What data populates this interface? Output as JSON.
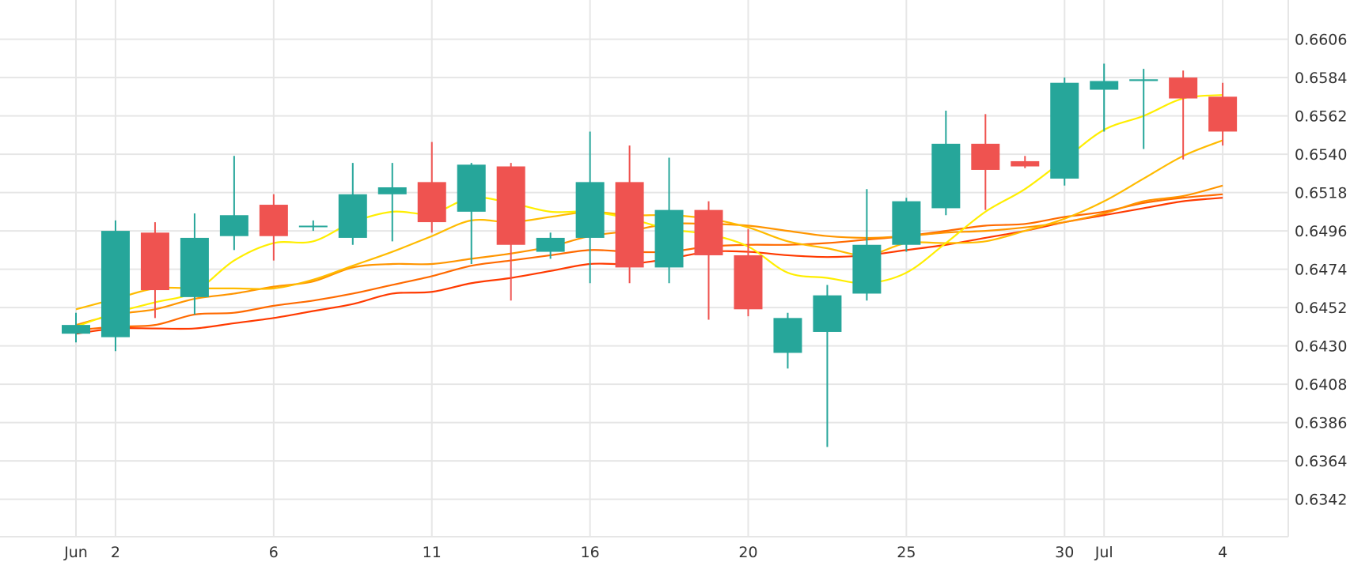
{
  "chart_data": {
    "type": "candlestick",
    "title": "",
    "xlabel": "",
    "ylabel": "",
    "ylim": [
      0.6321,
      0.66285
    ],
    "grid": true,
    "legend": "none",
    "colors": {
      "up": "#26a69a",
      "down": "#ef5350",
      "grid": "#e6e6e6",
      "text": "#333333"
    },
    "dates": [
      "Jun 1",
      "Jun 2",
      "Jun 3",
      "Jun 4",
      "Jun 5",
      "Jun 6",
      "Jun 8",
      "Jun 9",
      "Jun 10",
      "Jun 11",
      "Jun 12",
      "Jun 13",
      "Jun 15",
      "Jun 16",
      "Jun 17",
      "Jun 18",
      "Jun 19",
      "Jun 20",
      "Jun 22",
      "Jun 23",
      "Jun 24",
      "Jun 25",
      "Jun 26",
      "Jun 27",
      "Jun 29",
      "Jun 30",
      "Jul 1",
      "Jul 2",
      "Jul 3",
      "Jul 4"
    ],
    "ohlc": [
      [
        0.6437,
        0.6449,
        0.6432,
        0.6442
      ],
      [
        0.6435,
        0.6502,
        0.6427,
        0.6496
      ],
      [
        0.6495,
        0.6501,
        0.6446,
        0.6462
      ],
      [
        0.6458,
        0.6506,
        0.6448,
        0.6492
      ],
      [
        0.6493,
        0.6539,
        0.6485,
        0.6505
      ],
      [
        0.6511,
        0.6517,
        0.6479,
        0.6493
      ],
      [
        0.6499,
        0.6502,
        0.6496,
        0.6499
      ],
      [
        0.6492,
        0.6535,
        0.6488,
        0.6517
      ],
      [
        0.6517,
        0.6535,
        0.649,
        0.6521
      ],
      [
        0.6524,
        0.6547,
        0.6495,
        0.6501
      ],
      [
        0.6507,
        0.6535,
        0.6477,
        0.6534
      ],
      [
        0.6533,
        0.6535,
        0.6456,
        0.6488
      ],
      [
        0.6484,
        0.6495,
        0.648,
        0.6492
      ],
      [
        0.6492,
        0.6553,
        0.6466,
        0.6524
      ],
      [
        0.6524,
        0.6545,
        0.6466,
        0.6475
      ],
      [
        0.6475,
        0.6538,
        0.6466,
        0.6508
      ],
      [
        0.6508,
        0.6513,
        0.6445,
        0.6482
      ],
      [
        0.6482,
        0.6497,
        0.6447,
        0.6451
      ],
      [
        0.6426,
        0.6449,
        0.6417,
        0.6446
      ],
      [
        0.6438,
        0.6465,
        0.6372,
        0.6459
      ],
      [
        0.646,
        0.652,
        0.6456,
        0.6488
      ],
      [
        0.6488,
        0.6515,
        0.6484,
        0.6513
      ],
      [
        0.6509,
        0.6565,
        0.6505,
        0.6546
      ],
      [
        0.6546,
        0.6563,
        0.6508,
        0.6531
      ],
      [
        0.6536,
        0.6539,
        0.6532,
        0.6533
      ],
      [
        0.6526,
        0.6584,
        0.6522,
        0.6581
      ],
      [
        0.6577,
        0.6592,
        0.6553,
        0.6582
      ],
      [
        0.6582,
        0.6589,
        0.6543,
        0.6583
      ],
      [
        0.6584,
        0.6588,
        0.6537,
        0.6572
      ],
      [
        0.6573,
        0.6581,
        0.6545,
        0.6553
      ]
    ],
    "moving_averages": [
      {
        "name": "ma-1",
        "color": "#ffee00",
        "values": [
          0.6441,
          0.6449,
          0.6455,
          0.6461,
          0.6479,
          0.6489,
          0.649,
          0.6501,
          0.6507,
          0.6506,
          0.6515,
          0.6512,
          0.6507,
          0.6507,
          0.6503,
          0.6497,
          0.6494,
          0.6487,
          0.6472,
          0.6469,
          0.6466,
          0.6472,
          0.6489,
          0.6507,
          0.652,
          0.6537,
          0.6554,
          0.6562,
          0.6572,
          0.6574
        ]
      },
      {
        "name": "ma-2",
        "color": "#ffbb00",
        "values": [
          0.6451,
          0.6457,
          0.6463,
          0.6463,
          0.6463,
          0.6463,
          0.6468,
          0.6476,
          0.6484,
          0.6493,
          0.6502,
          0.6501,
          0.6504,
          0.6507,
          0.6505,
          0.6505,
          0.6503,
          0.6498,
          0.649,
          0.6486,
          0.6482,
          0.6489,
          0.6489,
          0.649,
          0.6496,
          0.6503,
          0.6513,
          0.6526,
          0.6539,
          0.6548
        ]
      },
      {
        "name": "ma-3",
        "color": "#ff9500",
        "values": [
          0.6442,
          0.6448,
          0.6451,
          0.6457,
          0.646,
          0.6464,
          0.6467,
          0.6475,
          0.6477,
          0.6477,
          0.648,
          0.6483,
          0.6487,
          0.6493,
          0.6496,
          0.65,
          0.65,
          0.6499,
          0.6496,
          0.6493,
          0.6492,
          0.6493,
          0.6495,
          0.6496,
          0.6498,
          0.6501,
          0.6506,
          0.6513,
          0.6516,
          0.6522
        ]
      },
      {
        "name": "ma-4",
        "color": "#ff6a00",
        "values": [
          0.6439,
          0.6441,
          0.6442,
          0.6448,
          0.6449,
          0.6453,
          0.6456,
          0.646,
          0.6465,
          0.647,
          0.6476,
          0.6479,
          0.6482,
          0.6485,
          0.6484,
          0.6484,
          0.6487,
          0.6488,
          0.6488,
          0.6489,
          0.6491,
          0.6493,
          0.6496,
          0.6499,
          0.65,
          0.6504,
          0.6507,
          0.6512,
          0.6515,
          0.6517
        ]
      },
      {
        "name": "ma-5",
        "color": "#ff3a00",
        "values": [
          0.6437,
          0.644,
          0.644,
          0.644,
          0.6443,
          0.6446,
          0.645,
          0.6454,
          0.646,
          0.6461,
          0.6466,
          0.6469,
          0.6473,
          0.6477,
          0.6477,
          0.648,
          0.6484,
          0.6484,
          0.6482,
          0.6481,
          0.6482,
          0.6485,
          0.6488,
          0.6492,
          0.6496,
          0.6501,
          0.6505,
          0.6509,
          0.6513,
          0.6515
        ]
      }
    ],
    "y_ticks": [
      "0.6606",
      "0.6584",
      "0.6562",
      "0.6540",
      "0.6518",
      "0.6496",
      "0.6474",
      "0.6452",
      "0.6430",
      "0.6408",
      "0.6386",
      "0.6364",
      "0.6342"
    ],
    "x_ticks": [
      {
        "index": 0,
        "label": "Jun"
      },
      {
        "index": 1,
        "label": "2"
      },
      {
        "index": 5,
        "label": "6"
      },
      {
        "index": 9,
        "label": "11"
      },
      {
        "index": 13,
        "label": "16"
      },
      {
        "index": 17,
        "label": "20"
      },
      {
        "index": 21,
        "label": "25"
      },
      {
        "index": 25,
        "label": "30"
      },
      {
        "index": 26,
        "label": "Jul"
      },
      {
        "index": 29,
        "label": "4"
      }
    ]
  }
}
